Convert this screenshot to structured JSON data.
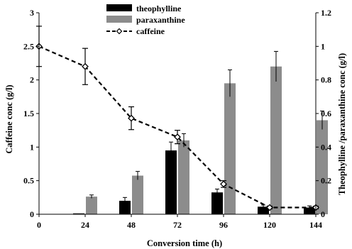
{
  "chart_data": {
    "type": "bar+line",
    "xlabel": "Conversion time (h)",
    "ylabel_left": "Caffeine conc (g/l)",
    "ylabel_right": "Theophylline /paraxanthine conc (g/l)",
    "x": [
      "0",
      "24",
      "48",
      "72",
      "96",
      "120",
      "144"
    ],
    "y_left_lim": [
      0,
      3
    ],
    "y_left_ticks": [
      "0",
      "0.5",
      "1",
      "1.5",
      "2",
      "2.5",
      "3"
    ],
    "y_right_lim": [
      0,
      1.2
    ],
    "y_right_ticks": [
      "0",
      "0.2",
      "0.4",
      "0.6",
      "0.8",
      "1",
      "1.2"
    ],
    "grid": false,
    "legend_position": "top-center",
    "series": [
      {
        "name": "theophylline",
        "kind": "bar",
        "axis": "right",
        "color": "#000000",
        "values": [
          null,
          0.005,
          0.08,
          0.38,
          0.13,
          0.045,
          0.04
        ],
        "errors": [
          null,
          0.0,
          0.02,
          0.05,
          0.02,
          0.01,
          0.01
        ]
      },
      {
        "name": "paraxanthine",
        "kind": "bar",
        "axis": "right",
        "color": "#8c8c8c",
        "values": [
          null,
          0.105,
          0.23,
          0.44,
          0.78,
          0.88,
          0.56
        ],
        "errors": [
          null,
          0.01,
          0.025,
          0.04,
          0.08,
          0.09,
          0.055
        ]
      },
      {
        "name": "caffeine",
        "kind": "line",
        "axis": "left",
        "color": "#000000",
        "values": [
          2.5,
          2.2,
          1.43,
          1.15,
          0.45,
          0.1,
          0.1
        ],
        "errors": [
          0.3,
          0.27,
          0.17,
          0.1,
          0.05,
          0.02,
          0.02
        ]
      }
    ]
  }
}
